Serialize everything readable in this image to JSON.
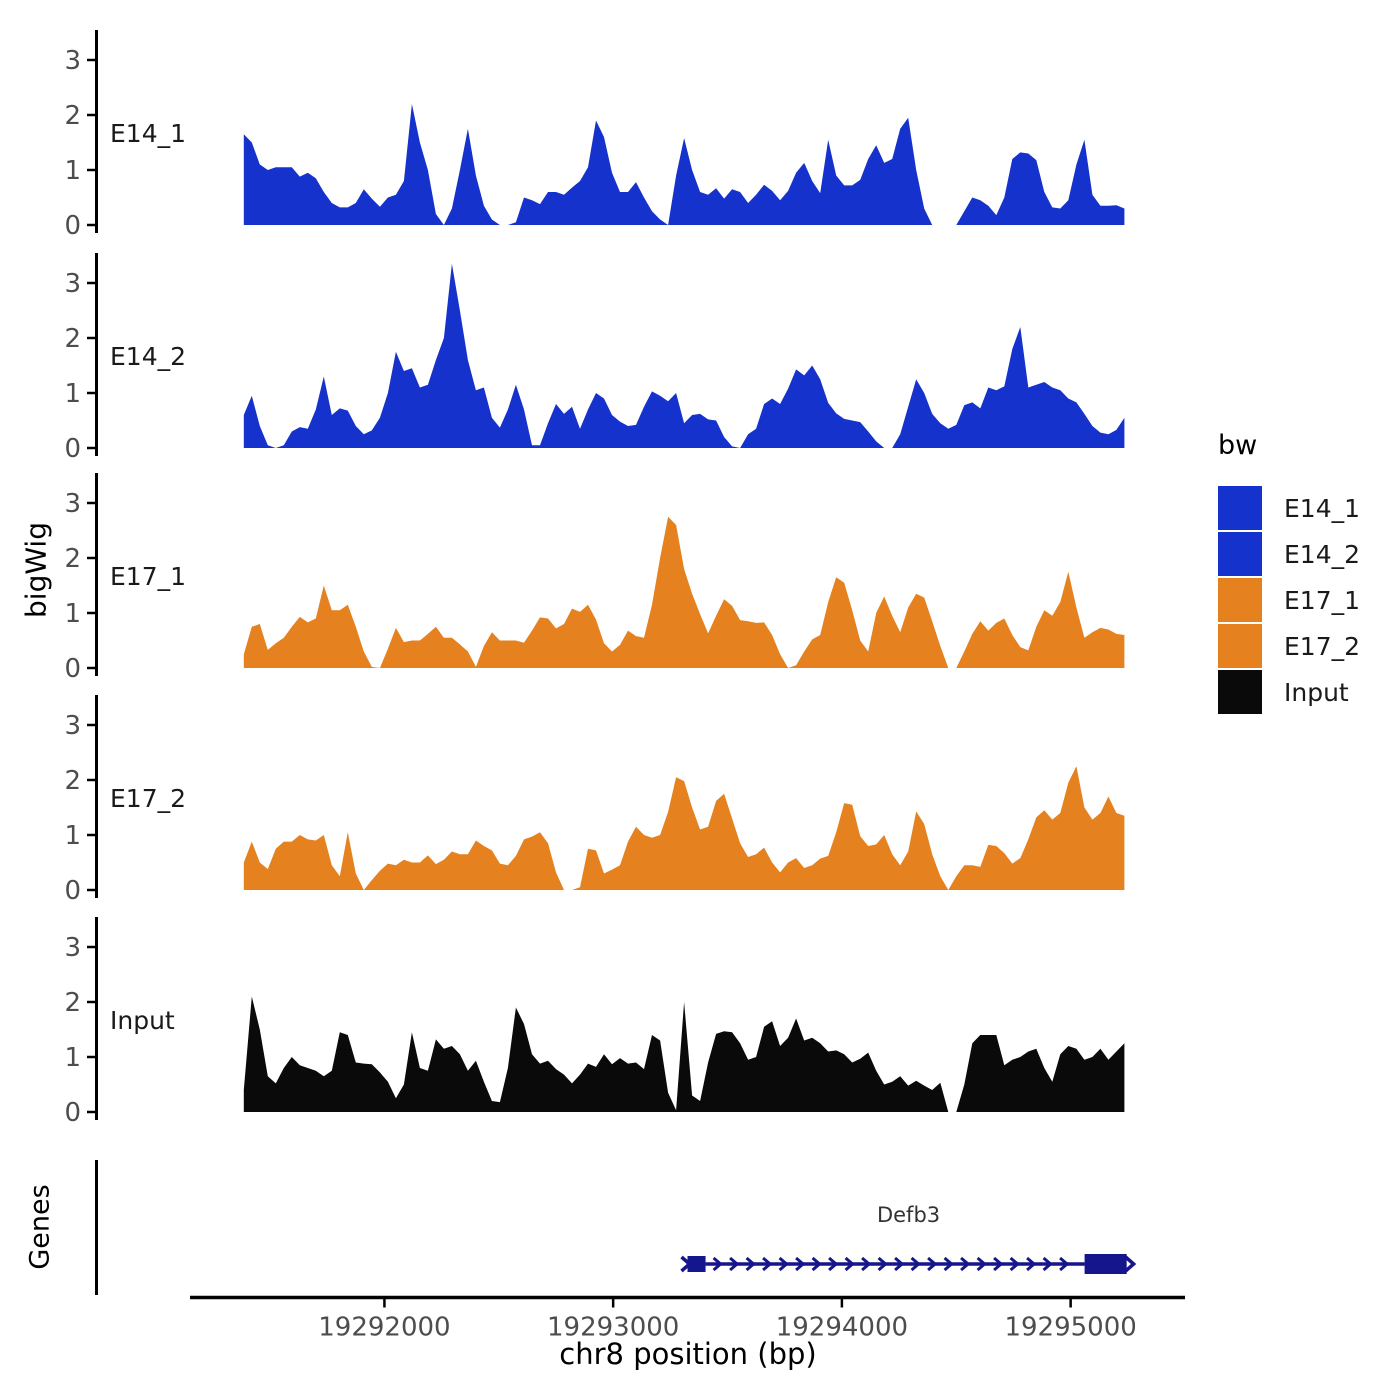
{
  "figure": {
    "background": "#ffffff",
    "y_axis_title": "bigWig",
    "genes_track_title": "Genes",
    "x_axis_title": "chr8 position (bp)"
  },
  "legend": {
    "title": "bw",
    "entries": [
      {
        "label": "E14_1",
        "color": "#1532cd"
      },
      {
        "label": "E14_2",
        "color": "#1532cd"
      },
      {
        "label": "E17_1",
        "color": "#e5811e"
      },
      {
        "label": "E17_2",
        "color": "#e5811e"
      },
      {
        "label": "Input",
        "color": "#0a0a0a"
      }
    ]
  },
  "text_colors": {
    "tick_label": "#4d4d4d",
    "track_label": "#1a1a1a",
    "axis_title": "#000000",
    "gene_label": "#333333",
    "axis_line": "#000000"
  },
  "chart_data": {
    "type": "area",
    "title": "",
    "xlabel": "chr8 position (bp)",
    "ylabel": "bigWig",
    "x_units": "bp",
    "x_domain": [
      19291150,
      19295500
    ],
    "x_ticks": [
      19292000,
      19293000,
      19294000,
      19295000
    ],
    "x_tick_labels": [
      "19292000",
      "19293000",
      "19294000",
      "19295000"
    ],
    "y_ticks": [
      0,
      1,
      2,
      3
    ],
    "y_domain": [
      0,
      3.6
    ],
    "legend_title": "bw",
    "legend_position": "right",
    "grid": false,
    "sample_x_start": 19291385,
    "sample_x_step": 35,
    "tracks": [
      {
        "name": "E14_1",
        "color": "#1532cd",
        "values": [
          1.65,
          1.5,
          1.1,
          1.0,
          1.05,
          1.05,
          1.05,
          0.88,
          0.95,
          0.85,
          0.6,
          0.4,
          0.32,
          0.32,
          0.4,
          0.65,
          0.48,
          0.33,
          0.5,
          0.55,
          0.8,
          2.2,
          1.5,
          1.0,
          0.2,
          0,
          0.3,
          1.0,
          1.75,
          0.9,
          0.35,
          0.1,
          0,
          0,
          0.05,
          0.5,
          0.45,
          0.38,
          0.6,
          0.6,
          0.55,
          0.68,
          0.8,
          1.05,
          1.9,
          1.6,
          0.95,
          0.6,
          0.6,
          0.78,
          0.5,
          0.25,
          0.1,
          0,
          0.9,
          1.58,
          1.0,
          0.6,
          0.55,
          0.67,
          0.48,
          0.65,
          0.6,
          0.4,
          0.55,
          0.73,
          0.62,
          0.45,
          0.62,
          0.95,
          1.13,
          0.8,
          0.58,
          1.55,
          0.9,
          0.72,
          0.72,
          0.82,
          1.2,
          1.45,
          1.13,
          1.2,
          1.75,
          1.95,
          1.0,
          0.3,
          0,
          0,
          0,
          0,
          0.25,
          0.5,
          0.45,
          0.35,
          0.18,
          0.5,
          1.2,
          1.32,
          1.3,
          1.18,
          0.6,
          0.32,
          0.3,
          0.45,
          1.1,
          1.55,
          0.55,
          0.35,
          0.35,
          0.36,
          0.3
        ]
      },
      {
        "name": "E14_2",
        "color": "#1532cd",
        "values": [
          0.6,
          0.95,
          0.4,
          0.05,
          0,
          0.05,
          0.3,
          0.38,
          0.35,
          0.7,
          1.3,
          0.6,
          0.72,
          0.68,
          0.4,
          0.25,
          0.32,
          0.55,
          1.0,
          1.75,
          1.4,
          1.45,
          1.1,
          1.15,
          1.6,
          2.0,
          3.35,
          2.5,
          1.6,
          1.05,
          1.1,
          0.55,
          0.37,
          0.7,
          1.15,
          0.7,
          0.05,
          0.05,
          0.45,
          0.8,
          0.62,
          0.75,
          0.35,
          0.7,
          1.0,
          0.9,
          0.6,
          0.48,
          0.4,
          0.42,
          0.75,
          1.03,
          0.95,
          0.85,
          1.0,
          0.45,
          0.6,
          0.62,
          0.52,
          0.5,
          0.2,
          0.03,
          0,
          0.25,
          0.35,
          0.8,
          0.9,
          0.8,
          1.08,
          1.43,
          1.32,
          1.5,
          1.25,
          0.82,
          0.63,
          0.53,
          0.5,
          0.47,
          0.3,
          0.12,
          0,
          0,
          0.25,
          0.75,
          1.25,
          1.0,
          0.62,
          0.45,
          0.35,
          0.42,
          0.78,
          0.83,
          0.72,
          1.1,
          1.05,
          1.12,
          1.8,
          2.2,
          1.1,
          1.15,
          1.2,
          1.1,
          1.05,
          0.9,
          0.83,
          0.62,
          0.4,
          0.28,
          0.25,
          0.33,
          0.55
        ]
      },
      {
        "name": "E17_1",
        "color": "#e5811e",
        "values": [
          0.25,
          0.75,
          0.8,
          0.33,
          0.45,
          0.55,
          0.75,
          0.93,
          0.83,
          0.9,
          1.5,
          1.05,
          1.05,
          1.15,
          0.75,
          0.3,
          0.02,
          0,
          0.35,
          0.73,
          0.47,
          0.5,
          0.5,
          0.62,
          0.75,
          0.55,
          0.55,
          0.43,
          0.3,
          0.02,
          0.4,
          0.65,
          0.5,
          0.5,
          0.5,
          0.46,
          0.68,
          0.92,
          0.9,
          0.72,
          0.8,
          1.08,
          1.02,
          1.15,
          0.88,
          0.45,
          0.3,
          0.42,
          0.68,
          0.58,
          0.55,
          1.15,
          2.0,
          2.75,
          2.6,
          1.8,
          1.35,
          0.98,
          0.63,
          0.95,
          1.25,
          1.13,
          0.87,
          0.85,
          0.82,
          0.83,
          0.6,
          0.25,
          0,
          0.05,
          0.3,
          0.52,
          0.6,
          1.2,
          1.65,
          1.55,
          1.05,
          0.5,
          0.3,
          1.0,
          1.3,
          0.95,
          0.65,
          1.1,
          1.35,
          1.28,
          0.85,
          0.4,
          0,
          0,
          0.3,
          0.62,
          0.85,
          0.68,
          0.82,
          0.9,
          0.6,
          0.38,
          0.32,
          0.75,
          1.05,
          0.95,
          1.2,
          1.75,
          1.1,
          0.55,
          0.65,
          0.73,
          0.7,
          0.62,
          0.6
        ]
      },
      {
        "name": "E17_2",
        "color": "#e5811e",
        "values": [
          0.5,
          0.88,
          0.5,
          0.38,
          0.75,
          0.88,
          0.88,
          1.0,
          0.92,
          0.9,
          1.0,
          0.45,
          0.25,
          1.05,
          0.3,
          0,
          0.18,
          0.35,
          0.48,
          0.45,
          0.55,
          0.5,
          0.5,
          0.63,
          0.47,
          0.55,
          0.7,
          0.65,
          0.65,
          0.9,
          0.8,
          0.72,
          0.48,
          0.45,
          0.62,
          0.92,
          0.97,
          1.05,
          0.85,
          0.32,
          0,
          0,
          0.05,
          0.75,
          0.72,
          0.3,
          0.37,
          0.45,
          0.88,
          1.15,
          1.0,
          0.95,
          1.0,
          1.42,
          2.05,
          1.98,
          1.5,
          1.1,
          1.15,
          1.62,
          1.75,
          1.3,
          0.85,
          0.6,
          0.65,
          0.77,
          0.5,
          0.32,
          0.5,
          0.58,
          0.4,
          0.45,
          0.57,
          0.62,
          1.05,
          1.58,
          1.55,
          0.98,
          0.8,
          0.83,
          1.0,
          0.65,
          0.45,
          0.7,
          1.43,
          1.2,
          0.65,
          0.25,
          0,
          0.25,
          0.45,
          0.45,
          0.42,
          0.82,
          0.8,
          0.67,
          0.48,
          0.58,
          0.92,
          1.32,
          1.45,
          1.28,
          1.4,
          1.95,
          2.25,
          1.5,
          1.28,
          1.4,
          1.7,
          1.4,
          1.35
        ]
      },
      {
        "name": "Input",
        "color": "#0a0a0a",
        "values": [
          0.4,
          2.1,
          1.5,
          0.65,
          0.52,
          0.8,
          1.0,
          0.85,
          0.8,
          0.75,
          0.65,
          0.75,
          1.45,
          1.4,
          0.9,
          0.88,
          0.87,
          0.72,
          0.55,
          0.25,
          0.5,
          1.45,
          0.8,
          0.75,
          1.32,
          1.15,
          1.2,
          1.05,
          0.75,
          0.93,
          0.55,
          0.2,
          0.18,
          0.8,
          1.9,
          1.6,
          1.05,
          0.88,
          0.93,
          0.78,
          0.68,
          0.52,
          0.68,
          0.88,
          0.82,
          1.05,
          0.87,
          0.98,
          0.88,
          0.9,
          0.78,
          1.4,
          1.3,
          0.35,
          0.03,
          2.0,
          0.3,
          0.2,
          0.9,
          1.42,
          1.47,
          1.45,
          1.25,
          0.95,
          1.0,
          1.55,
          1.65,
          1.2,
          1.35,
          1.7,
          1.3,
          1.35,
          1.25,
          1.1,
          1.12,
          1.05,
          0.9,
          0.97,
          1.08,
          0.75,
          0.5,
          0.55,
          0.65,
          0.48,
          0.57,
          0.48,
          0.4,
          0.53,
          0,
          0,
          0.5,
          1.25,
          1.4,
          1.4,
          1.4,
          0.85,
          0.95,
          1.0,
          1.1,
          1.15,
          0.8,
          0.55,
          1.05,
          1.2,
          1.15,
          0.95,
          1.0,
          1.15,
          0.95,
          1.1,
          1.25
        ]
      }
    ],
    "gene": {
      "name": "Defb3",
      "chrom": "chr8",
      "strand": "+",
      "start": 19293312,
      "end": 19295271,
      "exons": [
        [
          19293325,
          19293404
        ],
        [
          19295061,
          19295245
        ]
      ],
      "color": "#15158c"
    }
  }
}
